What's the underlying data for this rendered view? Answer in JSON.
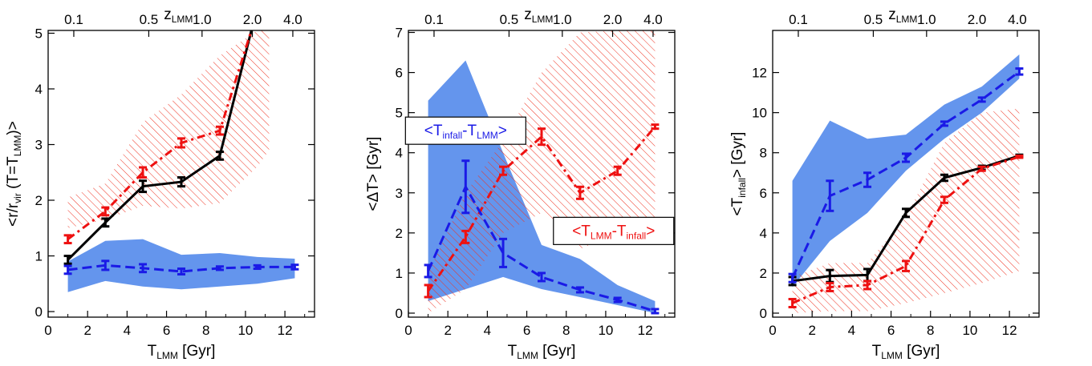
{
  "colors": {
    "black": "#000000",
    "red": "#ee1111",
    "blue": "#1a1ae6",
    "blue_band": "#6495ed",
    "red_hatch": "#ee3322"
  },
  "chart_data": [
    {
      "type": "line",
      "xlabel": {
        "main": "T",
        "sub": "LMM",
        "suffix": " [Gyr]"
      },
      "ylabel": {
        "pre": "<r/r",
        "sub": "vir",
        "mid": " (T=T",
        "sub2": "LMM",
        "post": ")>"
      },
      "top_axis": {
        "main": "z",
        "sub": "LMM",
        "ticks": [
          "0.1",
          "0.5",
          "1.0",
          "2.0",
          "4.0"
        ]
      },
      "xlim": [
        0,
        13.5
      ],
      "ylim": [
        -0.1,
        5.05
      ],
      "xticks": [
        0,
        2,
        4,
        6,
        8,
        10,
        12
      ],
      "yticks": [
        0,
        1,
        2,
        3,
        4,
        5
      ],
      "x": [
        1.0,
        2.9,
        4.8,
        6.75,
        8.7,
        10.6,
        12.5
      ],
      "series": [
        {
          "color_key": "black",
          "style": "solid",
          "x": [
            1.0,
            2.9,
            4.8,
            6.75,
            8.7,
            10.3
          ],
          "values": [
            0.93,
            1.6,
            2.25,
            2.33,
            2.8,
            5.05
          ],
          "err": [
            0.07,
            0.07,
            0.1,
            0.08,
            0.07,
            0.0
          ]
        },
        {
          "color_key": "red",
          "style": "dashdot",
          "x": [
            1.0,
            2.9,
            4.8,
            6.75,
            8.7,
            10.3
          ],
          "values": [
            1.3,
            1.8,
            2.5,
            3.03,
            3.25,
            5.05
          ],
          "err": [
            0.07,
            0.07,
            0.09,
            0.08,
            0.07,
            0.0
          ]
        },
        {
          "color_key": "blue",
          "style": "dashed",
          "values": [
            0.75,
            0.83,
            0.78,
            0.72,
            0.78,
            0.8,
            0.8
          ],
          "err": [
            0.07,
            0.08,
            0.07,
            0.05,
            0.03,
            0.03,
            0.04
          ]
        }
      ],
      "bands": [
        {
          "color_key": "blue_band",
          "kind": "fill",
          "x": [
            1.0,
            2.9,
            4.8,
            6.75,
            8.7,
            10.6,
            12.5
          ],
          "lower": [
            0.35,
            0.55,
            0.45,
            0.4,
            0.45,
            0.5,
            0.6
          ],
          "upper": [
            0.9,
            1.27,
            1.3,
            1.02,
            1.05,
            0.98,
            0.95
          ]
        },
        {
          "color_key": "red_hatch",
          "kind": "hatch",
          "x": [
            1.0,
            2.9,
            4.8,
            6.75,
            8.7,
            10.6,
            11.2
          ],
          "lower": [
            1.5,
            1.65,
            1.9,
            1.85,
            1.95,
            2.6,
            2.9
          ],
          "upper": [
            2.05,
            2.3,
            3.4,
            3.9,
            4.6,
            5.05,
            5.05
          ]
        }
      ],
      "annotations": []
    },
    {
      "type": "line",
      "xlabel": {
        "main": "T",
        "sub": "LMM",
        "suffix": " [Gyr]"
      },
      "ylabel": {
        "pre": "<ΔT> [Gyr]",
        "sub": "",
        "mid": "",
        "sub2": "",
        "post": ""
      },
      "top_axis": {
        "main": "z",
        "sub": "LMM",
        "ticks": [
          "0.1",
          "0.5",
          "1.0",
          "2.0",
          "4.0"
        ]
      },
      "xlim": [
        0,
        13.5
      ],
      "ylim": [
        -0.1,
        7.05
      ],
      "xticks": [
        0,
        2,
        4,
        6,
        8,
        10,
        12
      ],
      "yticks": [
        0,
        1,
        2,
        3,
        4,
        5,
        6,
        7
      ],
      "x": [
        1.0,
        2.9,
        4.8,
        6.75,
        8.7,
        10.6,
        12.5
      ],
      "series": [
        {
          "color_key": "red",
          "style": "dashdot",
          "values": [
            0.55,
            1.9,
            3.55,
            4.4,
            3.0,
            3.55,
            4.65
          ],
          "err": [
            0.15,
            0.15,
            0.1,
            0.2,
            0.15,
            0.1,
            0.05
          ]
        },
        {
          "color_key": "blue",
          "style": "dashed",
          "values": [
            1.05,
            3.15,
            1.5,
            0.9,
            0.58,
            0.33,
            0.05
          ],
          "err": [
            0.15,
            0.65,
            0.35,
            0.1,
            0.06,
            0.05,
            0.05
          ]
        }
      ],
      "bands": [
        {
          "color_key": "blue_band",
          "kind": "fill",
          "x": [
            1.0,
            2.9,
            4.8,
            6.75,
            8.7,
            10.6,
            12.5
          ],
          "lower": [
            0.3,
            0.6,
            0.9,
            0.6,
            0.4,
            0.2,
            0.0
          ],
          "upper": [
            5.3,
            6.3,
            4.0,
            1.7,
            1.35,
            0.7,
            0.3
          ]
        },
        {
          "color_key": "red_hatch",
          "kind": "hatch",
          "x": [
            1.0,
            2.9,
            4.8,
            6.75,
            8.7,
            10.6,
            12.5
          ],
          "lower": [
            0.0,
            0.6,
            2.0,
            2.5,
            1.6,
            2.0,
            2.3
          ],
          "upper": [
            1.0,
            3.0,
            4.3,
            6.0,
            7.0,
            7.05,
            7.05
          ]
        }
      ],
      "annotations": [
        {
          "color_key": "blue",
          "pre": "<T",
          "sub": "infall",
          "mid": "-T",
          "sub2": "LMM",
          "post": ">",
          "x": 2.9,
          "y": 4.55
        },
        {
          "color_key": "red",
          "pre": "<T",
          "sub": "LMM",
          "mid": "-T",
          "sub2": "infall",
          "post": ">",
          "x": 10.4,
          "y": 2.05
        }
      ]
    },
    {
      "type": "line",
      "xlabel": {
        "main": "T",
        "sub": "LMM",
        "suffix": " [Gyr]"
      },
      "ylabel": {
        "pre": "<T",
        "sub": "infall",
        "mid": "> [Gyr]",
        "sub2": "",
        "post": ""
      },
      "top_axis": {
        "main": "z",
        "sub": "LMM",
        "ticks": [
          "0.1",
          "0.5",
          "1.0",
          "2.0",
          "4.0"
        ]
      },
      "xlim": [
        0,
        13.5
      ],
      "ylim": [
        -0.2,
        14.1
      ],
      "xticks": [
        0,
        2,
        4,
        6,
        8,
        10,
        12
      ],
      "yticks": [
        0,
        2,
        4,
        6,
        8,
        10,
        12
      ],
      "x": [
        1.0,
        2.9,
        4.8,
        6.75,
        8.7,
        10.6,
        12.5
      ],
      "series": [
        {
          "color_key": "black",
          "style": "solid",
          "values": [
            1.6,
            1.85,
            1.9,
            5.0,
            6.75,
            7.25,
            7.85
          ],
          "err": [
            0.2,
            0.3,
            0.3,
            0.2,
            0.15,
            0.1,
            0.05
          ]
        },
        {
          "color_key": "red",
          "style": "dashdot",
          "values": [
            0.5,
            1.3,
            1.4,
            2.35,
            5.65,
            7.2,
            7.8
          ],
          "err": [
            0.2,
            0.2,
            0.2,
            0.25,
            0.15,
            0.1,
            0.05
          ]
        },
        {
          "color_key": "blue",
          "style": "dashed",
          "values": [
            1.75,
            5.85,
            6.65,
            7.75,
            9.45,
            10.65,
            12.05
          ],
          "err": [
            0.2,
            0.75,
            0.35,
            0.2,
            0.1,
            0.1,
            0.15
          ]
        }
      ],
      "bands": [
        {
          "color_key": "blue_band",
          "kind": "fill",
          "x": [
            1.0,
            2.9,
            4.8,
            6.75,
            8.7,
            10.6,
            12.5
          ],
          "lower": [
            1.3,
            3.6,
            5.0,
            7.1,
            8.7,
            10.0,
            11.7
          ],
          "upper": [
            6.6,
            9.6,
            8.7,
            8.9,
            10.4,
            11.3,
            12.9
          ]
        },
        {
          "color_key": "red_hatch",
          "kind": "hatch",
          "x": [
            1.0,
            2.9,
            4.8,
            6.75,
            8.7,
            10.6,
            12.5
          ],
          "lower": [
            0.0,
            0.1,
            0.1,
            0.5,
            1.0,
            1.5,
            2.1
          ],
          "upper": [
            1.8,
            2.5,
            2.5,
            4.8,
            8.5,
            10.0,
            10.2
          ]
        }
      ],
      "annotations": []
    }
  ]
}
